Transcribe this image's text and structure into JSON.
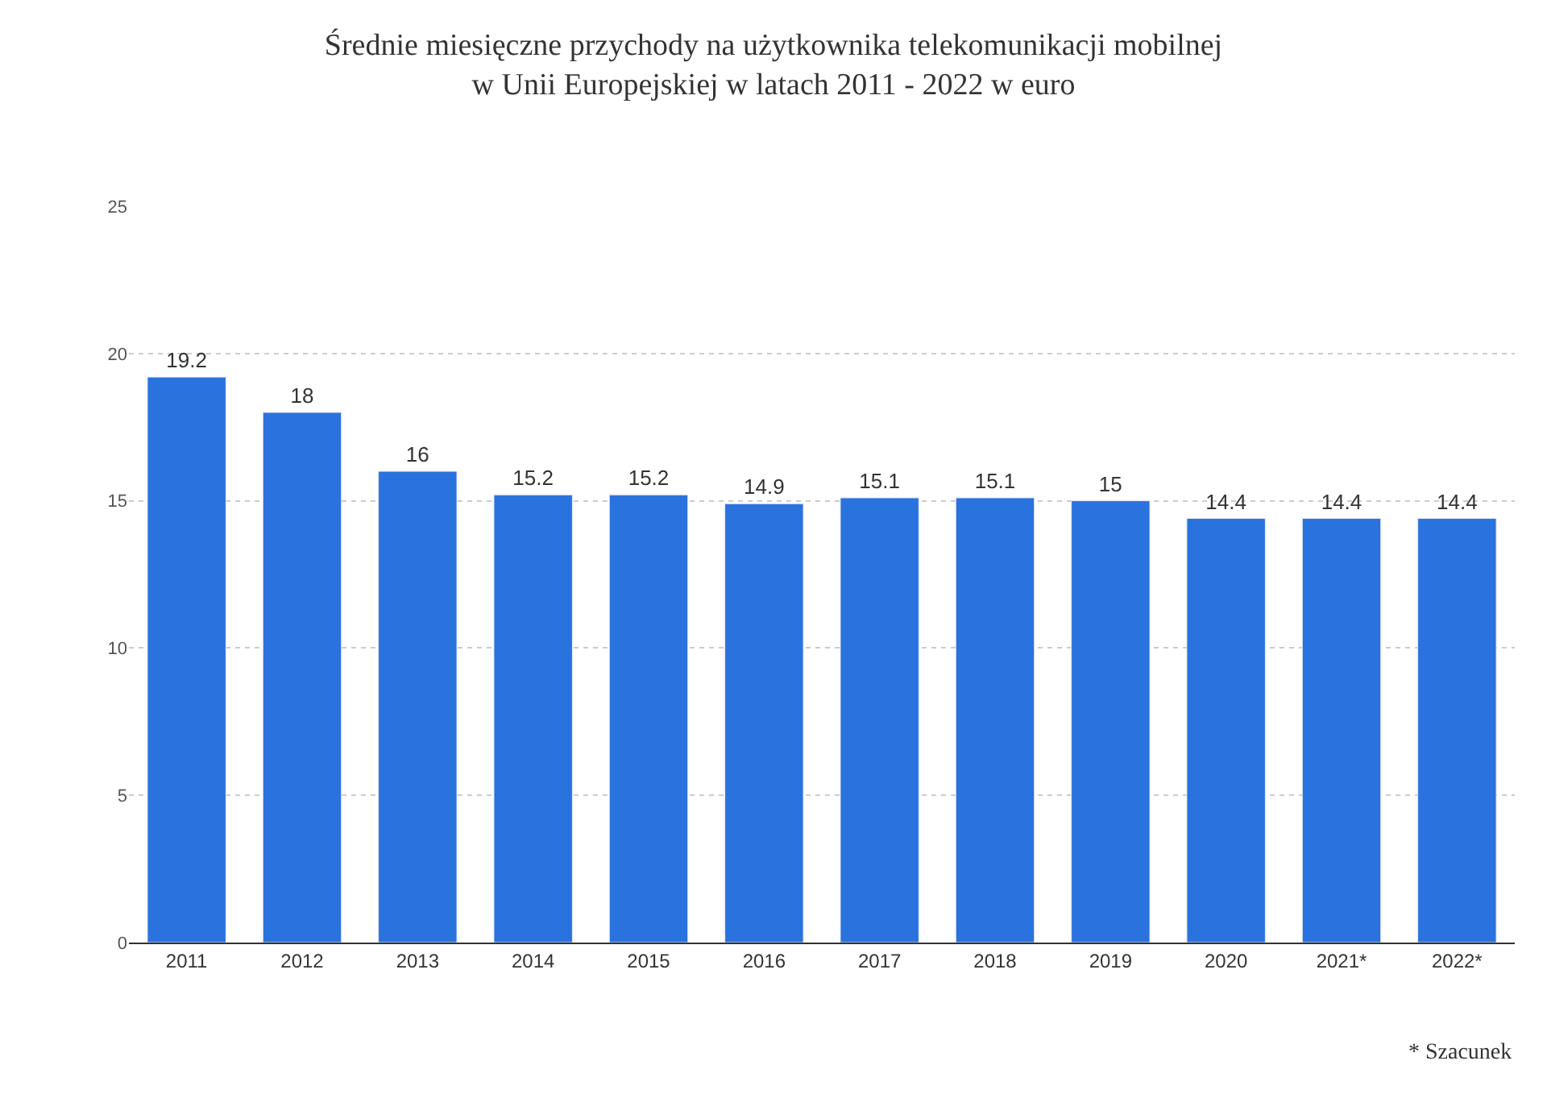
{
  "chart_data": {
    "type": "bar",
    "title": "Średnie miesięczne przychody na użytkownika telekomunikacji mobilnej\nw Unii Europejskiej w latach 2011 - 2022 w euro",
    "categories": [
      "2011",
      "2012",
      "2013",
      "2014",
      "2015",
      "2016",
      "2017",
      "2018",
      "2019",
      "2020",
      "2021*",
      "2022*"
    ],
    "values": [
      19.2,
      18,
      16,
      15.2,
      15.2,
      14.9,
      15.1,
      15.1,
      15,
      14.4,
      14.4,
      14.4
    ],
    "color": "#2a72de",
    "ylim": [
      0,
      25
    ],
    "yticks": [
      0,
      5,
      10,
      15,
      20,
      25
    ],
    "grid": "y",
    "data_labels": true,
    "annotations": [
      "* Szacunek"
    ]
  }
}
